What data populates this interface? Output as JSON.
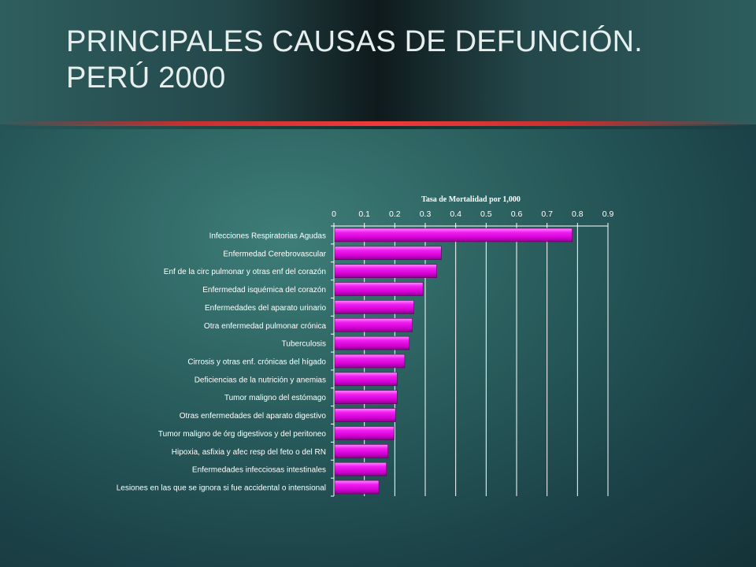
{
  "slide": {
    "title_line1": "PRINCIPALES CAUSAS DE DEFUNCIÓN.",
    "title_line2": "PERÚ 2000"
  },
  "chart_data": {
    "type": "bar",
    "orientation": "horizontal",
    "title": "Tasa de Mortalidad por 1,000",
    "xlim": [
      0,
      0.9
    ],
    "xticks": [
      "0",
      "0.1",
      "0.2",
      "0.3",
      "0.4",
      "0.5",
      "0.6",
      "0.7",
      "0.8",
      "0.9"
    ],
    "xaxis_position": "top",
    "grid": true,
    "bar_color": "#e600e6",
    "categories": [
      "Infecciones Respiratorias Agudas",
      "Enfermedad Cerebrovascular",
      "Enf de la circ pulmonar y otras enf del corazón",
      "Enfermedad isquémica del corazón",
      "Enfermedades del aparato urinario",
      "Otra enfermedad pulmonar crónica",
      "Tuberculosis",
      "Cirrosis y otras enf. crónicas del hígado",
      "Deficiencias de la nutrición y anemias",
      "Tumor maligno del estómago",
      "Otras enfermedades del aparato digestivo",
      "Tumor maligno de órg digestivos y del peritoneo",
      "Hipoxia, asfixia y afec resp del feto o del RN",
      "Enfermedades infecciosas intestinales",
      "Lesiones en las que se ignora si fue accidental o intensional"
    ],
    "values": [
      0.78,
      0.35,
      0.335,
      0.29,
      0.26,
      0.255,
      0.245,
      0.23,
      0.205,
      0.205,
      0.2,
      0.195,
      0.175,
      0.17,
      0.145
    ]
  }
}
